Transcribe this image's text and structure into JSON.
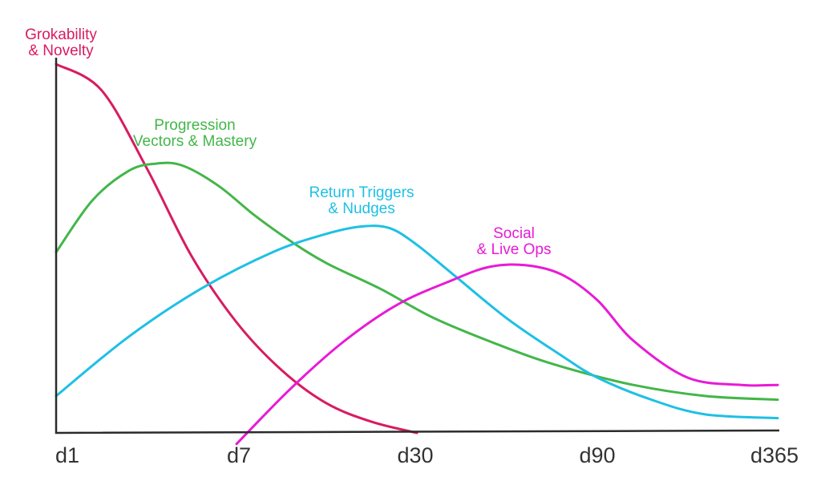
{
  "chart_data": {
    "type": "line",
    "title": "",
    "xlabel": "",
    "ylabel": "",
    "categories": [
      "d1",
      "d7",
      "d30",
      "d90",
      "d365"
    ],
    "xlim": [
      0,
      4
    ],
    "ylim": [
      0,
      100
    ],
    "grid": false,
    "legend": "inline labels near curves",
    "series": [
      {
        "name": "Grokability & Novelty",
        "label_lines": [
          "Grokability",
          "& Novelty"
        ],
        "color": "#d81b60",
        "x": [
          0,
          0.25,
          0.5,
          0.75,
          1.0,
          1.25,
          1.5,
          1.75,
          2.0
        ],
        "y": [
          100,
          93,
          72,
          48,
          30,
          17,
          8,
          3,
          0
        ]
      },
      {
        "name": "Progression Vectors & Mastery",
        "label_lines": [
          "Progression",
          "Vectors & Mastery"
        ],
        "color": "#43b649",
        "x": [
          0,
          0.2,
          0.4,
          0.55,
          0.7,
          0.9,
          1.1,
          1.3,
          1.5,
          1.8,
          2.1,
          2.5,
          2.8,
          3.2,
          3.6,
          4.0
        ],
        "y": [
          49,
          63,
          71,
          73,
          72.5,
          67,
          59,
          52,
          46,
          39,
          31,
          23,
          18,
          13,
          10,
          9
        ]
      },
      {
        "name": "Return Triggers & Nudges",
        "label_lines": [
          "Return Triggers",
          "& Nudges"
        ],
        "color": "#1ec0e4",
        "x": [
          0,
          0.4,
          0.8,
          1.2,
          1.5,
          1.7,
          1.85,
          2.0,
          2.2,
          2.5,
          2.8,
          3.0,
          3.3,
          3.6,
          4.0
        ],
        "y": [
          10,
          26,
          39,
          49,
          54,
          56,
          55.5,
          51,
          43,
          31,
          21,
          15,
          9,
          5,
          4
        ]
      },
      {
        "name": "Social & Live Ops",
        "label_lines": [
          "Social",
          "& Live Ops"
        ],
        "color": "#e81ad6",
        "x": [
          1.0,
          1.3,
          1.6,
          1.9,
          2.2,
          2.4,
          2.6,
          2.8,
          3.0,
          3.2,
          3.5,
          3.8,
          4.0
        ],
        "y": [
          -3,
          12,
          25,
          35,
          41.5,
          45,
          45.5,
          43,
          36,
          25,
          15,
          13,
          13
        ]
      }
    ]
  }
}
